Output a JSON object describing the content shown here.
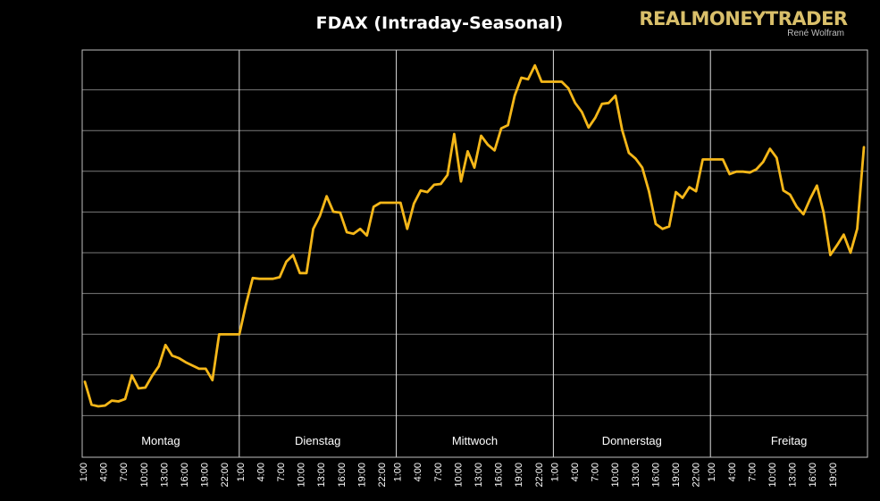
{
  "chart_data": {
    "type": "line",
    "title": "FDAX (Intraday-Seasonal)",
    "branding": {
      "name": "REALMONEYTRADER",
      "author": "René Wolfram"
    },
    "days": [
      "Montag",
      "Dienstag",
      "Mittwoch",
      "Donnerstag",
      "Freitag"
    ],
    "tick_labels": [
      "1:00",
      "4:00",
      "7:00",
      "10:00",
      "13:00",
      "16:00",
      "19:00",
      "22:00"
    ],
    "grid": true,
    "series_color": "#f5b719",
    "ylim": [
      0,
      9
    ],
    "series": [
      {
        "values": [
          0.84,
          0.28,
          0.24,
          0.26,
          0.38,
          0.36,
          0.42,
          1.0,
          0.68,
          0.7,
          0.98,
          1.22,
          1.74,
          1.48,
          1.42,
          1.32,
          1.24,
          1.16,
          1.16,
          0.88,
          2.0,
          2.0,
          2.0,
          2.0,
          2.74,
          3.38,
          3.36,
          3.36,
          3.36,
          3.4,
          3.78,
          3.94,
          3.5,
          3.5,
          4.58,
          4.9,
          5.38,
          5.0,
          4.98,
          4.5,
          4.46,
          4.58,
          4.42,
          5.12,
          5.22,
          5.22,
          5.22,
          5.22,
          4.58,
          5.2,
          5.52,
          5.48,
          5.66,
          5.68,
          5.9,
          6.9,
          5.74,
          6.48,
          6.08,
          6.86,
          6.64,
          6.5,
          7.04,
          7.12,
          7.84,
          8.28,
          8.24,
          8.58,
          8.18,
          8.18,
          8.18,
          8.18,
          8.02,
          7.66,
          7.44,
          7.06,
          7.3,
          7.64,
          7.66,
          7.84,
          7.0,
          6.44,
          6.3,
          6.08,
          5.5,
          4.7,
          4.58,
          4.64,
          5.48,
          5.34,
          5.6,
          5.5,
          6.28,
          6.28,
          6.28,
          6.28,
          5.92,
          5.98,
          5.98,
          5.96,
          6.04,
          6.22,
          6.54,
          6.32,
          5.52,
          5.42,
          5.12,
          4.94,
          5.32,
          5.64,
          4.98,
          3.94,
          4.18,
          4.44,
          4.0,
          4.58,
          6.58
        ]
      }
    ]
  }
}
